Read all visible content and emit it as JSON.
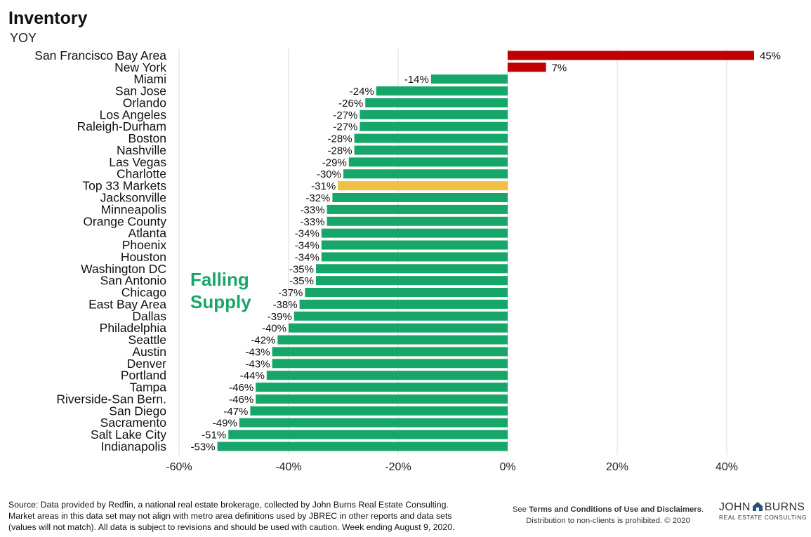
{
  "header": {
    "title": "Inventory",
    "subtitle": "YOY"
  },
  "colors": {
    "falling": "#16a66a",
    "rising": "#c00000",
    "aggregate": "#f0bf44",
    "grid": "#d9d9d9"
  },
  "annotation": {
    "line1": "Falling",
    "line2": "Supply"
  },
  "footer": {
    "source_line1": "Source: Data provided by Redfin, a national real estate brokerage, collected by John Burns Real Estate Consulting.",
    "source_line2": "Market areas in this data set may not align with metro area definitions used by JBREC in other reports and data sets",
    "source_line3": "(values will not match). All data is subject to revisions and should be used with caution.  Week ending August 9, 2020.",
    "terms_prefix": "See ",
    "terms_bold": "Terms and Conditions of Use and Disclaimers",
    "terms_suffix": ".",
    "distribution": "Distribution to non-clients is prohibited. © 2020"
  },
  "logo": {
    "word1": "JOHN",
    "word2": "BURNS",
    "tagline": "REAL ESTATE CONSULTING"
  },
  "chart_data": {
    "type": "bar",
    "orientation": "horizontal",
    "title": "Inventory",
    "subtitle": "YOY",
    "xlim": [
      -60,
      50
    ],
    "xticks": [
      -60,
      -40,
      -20,
      0,
      20,
      40
    ],
    "xtick_labels": [
      "-60%",
      "-40%",
      "-20%",
      "0%",
      "20%",
      "40%"
    ],
    "grid": "vertical",
    "value_suffix": "%",
    "categories": [
      "San Francisco Bay Area",
      "New York",
      "Miami",
      "San Jose",
      "Orlando",
      "Los Angeles",
      "Raleigh-Durham",
      "Boston",
      "Nashville",
      "Las Vegas",
      "Charlotte",
      "Top 33 Markets",
      "Jacksonville",
      "Minneapolis",
      "Orange County",
      "Atlanta",
      "Phoenix",
      "Houston",
      "Washington DC",
      "San Antonio",
      "Chicago",
      "East Bay Area",
      "Dallas",
      "Philadelphia",
      "Seattle",
      "Austin",
      "Denver",
      "Portland",
      "Tampa",
      "Riverside-San Bern.",
      "San Diego",
      "Sacramento",
      "Salt Lake City",
      "Indianapolis"
    ],
    "values": [
      45,
      7,
      -14,
      -24,
      -26,
      -27,
      -27,
      -28,
      -28,
      -29,
      -30,
      -31,
      -32,
      -33,
      -33,
      -34,
      -34,
      -34,
      -35,
      -35,
      -37,
      -38,
      -39,
      -40,
      -42,
      -43,
      -43,
      -44,
      -46,
      -46,
      -47,
      -49,
      -51,
      -53
    ],
    "highlight": "Top 33 Markets"
  }
}
